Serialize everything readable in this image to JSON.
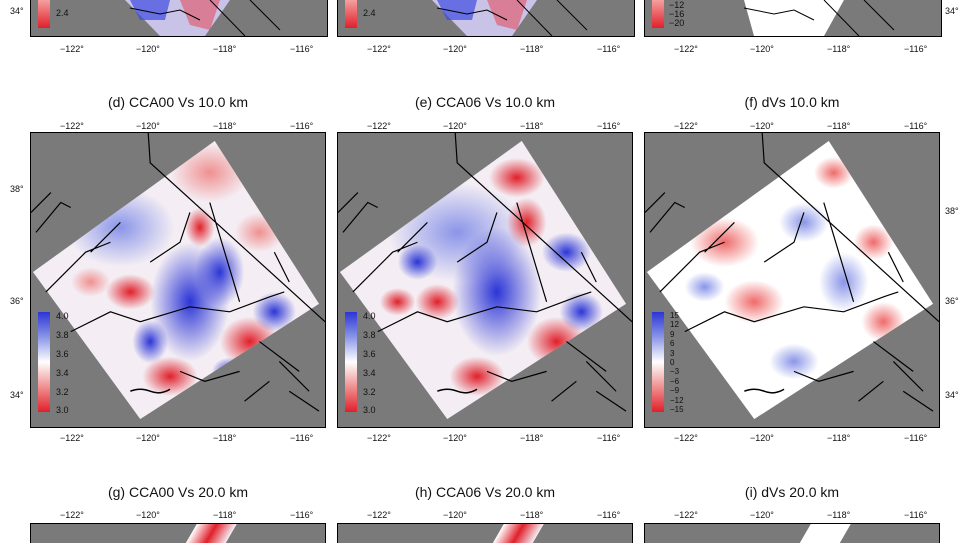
{
  "top_row": {
    "colorbar_labels": {
      "a": [
        "2.4"
      ],
      "b": [
        "2.4"
      ],
      "c": [
        "−12",
        "−16",
        "−20"
      ]
    },
    "x_ticks": [
      "−122°",
      "−120°",
      "−118°",
      "−116°"
    ],
    "y_tick_left": "34°",
    "y_tick_right": "34°"
  },
  "middle_row": {
    "panels": [
      {
        "title": "(d) CCA00  Vs  10.0 km",
        "colorbar": [
          "4.0",
          "3.8",
          "3.6",
          "3.4",
          "3.2",
          "3.0"
        ]
      },
      {
        "title": "(e) CCA06  Vs  10.0 km",
        "colorbar": [
          "4.0",
          "3.8",
          "3.6",
          "3.4",
          "3.2",
          "3.0"
        ]
      },
      {
        "title": "(f) dVs  10.0 km",
        "colorbar": [
          "15",
          "12",
          "9",
          "6",
          "3",
          "0",
          "−3",
          "−6",
          "−9",
          "−12",
          "−15"
        ]
      }
    ],
    "x_ticks": [
      "−122°",
      "−120°",
      "−118°",
      "−116°"
    ],
    "y_ticks_left": [
      "38°",
      "36°",
      "34°"
    ],
    "y_ticks_right": [
      "38°",
      "36°",
      "34°"
    ]
  },
  "bottom_row": {
    "panels": [
      {
        "title": "(g) CCA00  Vs  20.0 km"
      },
      {
        "title": "(h) CCA06  Vs  20.0 km"
      },
      {
        "title": "(i) dVs  20.0 km"
      }
    ],
    "x_ticks": [
      "−122°",
      "−120°",
      "−118°",
      "−116°"
    ]
  },
  "colors": {
    "background_gray": "#7a7a7a",
    "velocity_high": "#2b35d6",
    "velocity_low": "#e0202a",
    "neutral": "#ffffff"
  }
}
